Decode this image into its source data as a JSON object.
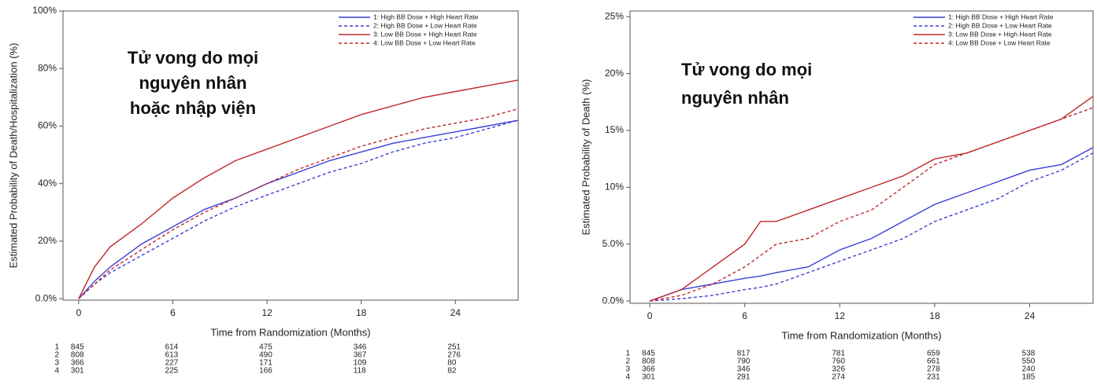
{
  "chart_data": [
    {
      "type": "line",
      "y_label": "Estimated Probability of Death/Hospitalization (%)",
      "x_label": "Time from Randomization (Months)",
      "annotation": [
        "Tử vong do mọi",
        "nguyên nhân",
        "hoặc nhập viện"
      ],
      "x": [
        0,
        1,
        2,
        4,
        6,
        8,
        10,
        12,
        14,
        16,
        18,
        20,
        22,
        24,
        26,
        28
      ],
      "xlim": [
        -1,
        28
      ],
      "xticks": [
        0,
        6,
        12,
        18,
        24
      ],
      "ylim": [
        -0.5,
        100
      ],
      "yticks": [
        {
          "value": 0,
          "label": "0.0%"
        },
        {
          "value": 20,
          "label": "20%"
        },
        {
          "value": 40,
          "label": "40%"
        },
        {
          "value": 60,
          "label": "60%"
        },
        {
          "value": 80,
          "label": "80%"
        },
        {
          "value": 100,
          "label": "100%"
        }
      ],
      "legend": "upper right",
      "series": [
        {
          "name": "1: High BB Dose + High Heart Rate",
          "color": "#3b3fd6",
          "dash": false,
          "values": [
            0,
            6,
            11,
            19,
            25,
            31,
            35,
            40,
            44,
            48,
            51,
            54,
            56,
            58,
            60,
            62
          ]
        },
        {
          "name": "2: High BB Dose + Low Heart Rate",
          "color": "#3b3fd6",
          "dash": true,
          "values": [
            0,
            5,
            9,
            15,
            21,
            27,
            32,
            36,
            40,
            44,
            47,
            51,
            54,
            56,
            59,
            62
          ]
        },
        {
          "name": "3: Low BB Dose + High Heart Rate",
          "color": "#c0282b",
          "dash": false,
          "values": [
            0,
            11,
            18,
            26,
            35,
            42,
            48,
            52,
            56,
            60,
            64,
            67,
            70,
            72,
            74,
            76
          ]
        },
        {
          "name": "4: Low BB Dose + Low Heart Rate",
          "color": "#c0282b",
          "dash": true,
          "values": [
            0,
            5,
            10,
            17,
            24,
            30,
            35,
            40,
            45,
            49,
            53,
            56,
            59,
            61,
            63,
            66
          ]
        }
      ],
      "risk_table": [
        {
          "label": "1",
          "values": [
            845,
            614,
            475,
            346,
            251
          ]
        },
        {
          "label": "2",
          "values": [
            808,
            613,
            490,
            367,
            276
          ]
        },
        {
          "label": "3",
          "values": [
            366,
            227,
            171,
            109,
            80
          ]
        },
        {
          "label": "4",
          "values": [
            301,
            225,
            166,
            118,
            82
          ]
        }
      ]
    },
    {
      "type": "line",
      "y_label": "Estimated Probability of Death (%)",
      "x_label": "Time from Randomization (Months)",
      "annotation": [
        "Tử vong do mọi",
        "nguyên nhân"
      ],
      "x": [
        0,
        2,
        4,
        6,
        7,
        8,
        10,
        12,
        14,
        16,
        18,
        20,
        22,
        24,
        26,
        28
      ],
      "xlim": [
        -1.25,
        28
      ],
      "xticks": [
        0,
        6,
        12,
        18,
        24
      ],
      "ylim": [
        -0.2,
        25.5
      ],
      "yticks": [
        {
          "value": 0,
          "label": "0.0%"
        },
        {
          "value": 5,
          "label": "5.0%"
        },
        {
          "value": 10,
          "label": "10%"
        },
        {
          "value": 15,
          "label": "15%"
        },
        {
          "value": 20,
          "label": "20%"
        },
        {
          "value": 25,
          "label": "25%"
        }
      ],
      "legend": "upper right",
      "series": [
        {
          "name": "1: High BB Dose + High Heart Rate",
          "color": "#3b3fd6",
          "dash": false,
          "values": [
            0,
            1,
            1.5,
            2,
            2.2,
            2.5,
            3,
            4.5,
            5.5,
            7,
            8.5,
            9.5,
            10.5,
            11.5,
            12,
            13.5
          ]
        },
        {
          "name": "2: High BB Dose + Low Heart Rate",
          "color": "#3b3fd6",
          "dash": true,
          "values": [
            0,
            0.2,
            0.5,
            1,
            1.2,
            1.5,
            2.5,
            3.5,
            4.5,
            5.5,
            7,
            8,
            9,
            10.5,
            11.5,
            13
          ]
        },
        {
          "name": "3: Low BB Dose + High Heart Rate",
          "color": "#c0282b",
          "dash": false,
          "values": [
            0,
            1,
            3,
            5,
            7,
            7,
            8,
            9,
            10,
            11,
            12.5,
            13,
            14,
            15,
            16,
            18
          ]
        },
        {
          "name": "4: Low BB Dose + Low Heart Rate",
          "color": "#c0282b",
          "dash": true,
          "values": [
            0,
            0.5,
            1.5,
            3,
            4,
            5,
            5.5,
            7,
            8,
            10,
            12,
            13,
            14,
            15,
            16,
            17
          ]
        }
      ],
      "risk_table": [
        {
          "label": "1",
          "values": [
            845,
            817,
            781,
            659,
            538
          ]
        },
        {
          "label": "2",
          "values": [
            808,
            790,
            760,
            661,
            550
          ]
        },
        {
          "label": "3",
          "values": [
            366,
            346,
            326,
            278,
            240
          ]
        },
        {
          "label": "4",
          "values": [
            301,
            291,
            274,
            231,
            185
          ]
        }
      ]
    }
  ]
}
